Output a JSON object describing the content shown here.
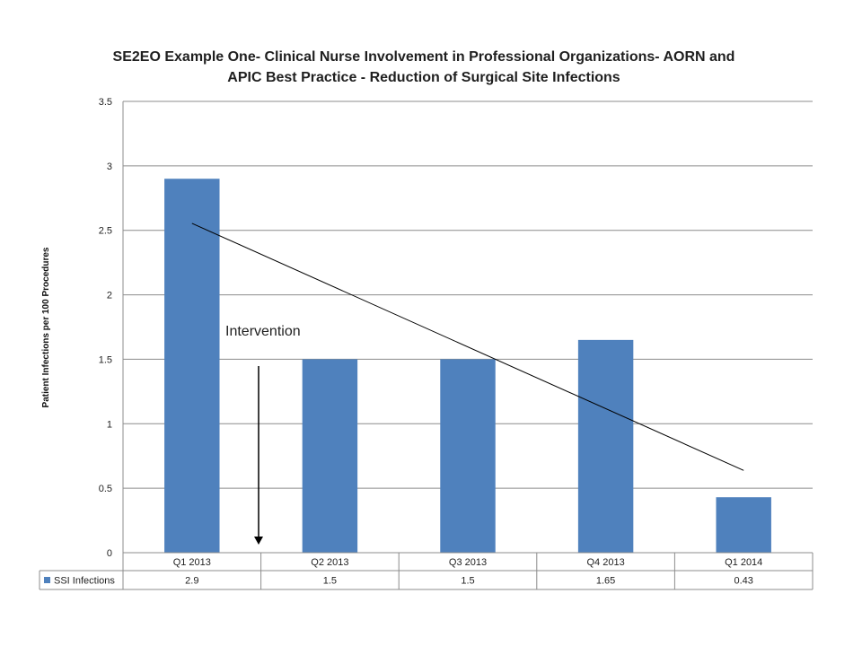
{
  "chart_data": {
    "type": "bar",
    "title_lines": [
      "SE2EO Example One- Clinical Nurse Involvement in Professional Organizations- AORN and",
      "APIC Best Practice - Reduction of Surgical Site Infections"
    ],
    "ylabel": "Patient Infections  per 100 Procedures",
    "xlabel": "",
    "categories": [
      "Q1 2013",
      "Q2 2013",
      "Q3 2013",
      "Q4 2013",
      "Q1 2014"
    ],
    "series": [
      {
        "name": "SSI Infections",
        "values": [
          2.9,
          1.5,
          1.5,
          1.65,
          0.43
        ],
        "value_labels": [
          "2.9",
          "1.5",
          "1.5",
          "1.65",
          "0.43"
        ],
        "color": "#4f81bd"
      }
    ],
    "ylim": [
      0,
      3.5
    ],
    "yticks": [
      0,
      0.5,
      1,
      1.5,
      2,
      2.5,
      3,
      3.5
    ],
    "ytick_labels": [
      "0",
      "0.5",
      "1",
      "1.5",
      "2",
      "2.5",
      "3",
      "3.5"
    ],
    "grid": true,
    "legend": "data-table",
    "trendline": {
      "type": "linear",
      "color": "#000000"
    },
    "annotations": [
      {
        "text": "Intervention",
        "arrow": "down",
        "between": [
          "Q1 2013",
          "Q2 2013"
        ]
      }
    ]
  }
}
